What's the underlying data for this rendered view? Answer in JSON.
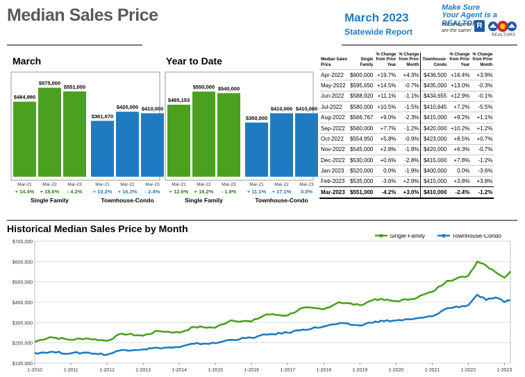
{
  "header": {
    "title": "Median Sales Price",
    "report_month": "March 2023",
    "report_sub": "Statewide Report",
    "brand_line1": "Make Sure",
    "brand_line2": "Your Agent is a REALTOR®",
    "brand_note1": "Not all agents",
    "brand_note2": "are the same!",
    "realtor_mark": "R",
    "car_word": "REALTORS"
  },
  "colors": {
    "green": "#4ba020",
    "blue": "#1f7bc1",
    "dark_green": "#2f7f14",
    "header_gray": "#58595b"
  },
  "chart_data": [
    {
      "type": "bar",
      "title": "March",
      "groups": [
        {
          "name": "Single Family",
          "categories": [
            "Mar-21",
            "Mar-22",
            "Mar-23"
          ],
          "values": [
            484990,
            575000,
            551000
          ],
          "value_labels": [
            "$484,990",
            "$575,000",
            "$551,000"
          ],
          "changes": [
            "+ 14.4%",
            "+ 18.6%",
            "- 4.2%"
          ]
        },
        {
          "name": "Townhouse-Condo",
          "categories": [
            "Mar-21",
            "Mar-22",
            "Mar-23"
          ],
          "values": [
            361070,
            420000,
            410000
          ],
          "value_labels": [
            "$361,070",
            "$420,000",
            "$410,000"
          ],
          "changes": [
            "+ 10.2%",
            "+ 16.3%",
            "- 2.4%"
          ]
        }
      ]
    },
    {
      "type": "bar",
      "title": "Year to Date",
      "groups": [
        {
          "name": "Single Family",
          "categories": [
            "Mar-21",
            "Mar-22",
            "Mar-23"
          ],
          "values": [
            465153,
            550000,
            540000
          ],
          "value_labels": [
            "$465,153",
            "$550,000",
            "$540,000"
          ],
          "changes": [
            "+ 12.6%",
            "+ 18.2%",
            "- 1.8%"
          ]
        },
        {
          "name": "Townhouse-Condo",
          "categories": [
            "Mar-21",
            "Mar-22",
            "Mar-23"
          ],
          "values": [
            350000,
            410000,
            410000
          ],
          "value_labels": [
            "$350,000",
            "$410,000",
            "$410,000"
          ],
          "changes": [
            "+ 11.1%",
            "+ 17.1%",
            "0.0%"
          ]
        }
      ]
    },
    {
      "type": "table",
      "headers": [
        [
          "Median Sales",
          "Price"
        ],
        [
          "Single",
          "Family"
        ],
        [
          "% Change",
          "from Prior",
          "Year"
        ],
        [
          "% Change",
          "from Prior",
          "Month"
        ],
        [
          "Townhouse-",
          "Condo"
        ],
        [
          "% Change",
          "from Prior",
          "Year"
        ],
        [
          "% Change",
          "from Prior",
          "Month"
        ]
      ],
      "rows": [
        [
          "Apr-2022",
          "$600,000",
          "+19.7%",
          "+4.3%",
          "$436,500",
          "+16.4%",
          "+3.9%"
        ],
        [
          "May-2022",
          "$595,650",
          "+14.5%",
          "-0.7%",
          "$435,000",
          "+13.0%",
          "-0.3%"
        ],
        [
          "Jun-2022",
          "$588,920",
          "+11.1%",
          "-1.1%",
          "$434,655",
          "+12.9%",
          "-0.1%"
        ],
        [
          "Jul-2022",
          "$580,000",
          "+10.5%",
          "-1.5%",
          "$410,645",
          "+7.2%",
          "-5.5%"
        ],
        [
          "Aug-2022",
          "$566,767",
          "+9.0%",
          "-2.3%",
          "$415,000",
          "+9.2%",
          "+1.1%"
        ],
        [
          "Sep-2022",
          "$560,000",
          "+7.7%",
          "-1.2%",
          "$420,000",
          "+10.2%",
          "+1.2%"
        ],
        [
          "Oct-2022",
          "$554,950",
          "+5.8%",
          "-0.9%",
          "$423,000",
          "+8.5%",
          "+0.7%"
        ],
        [
          "Nov-2022",
          "$545,000",
          "+2.8%",
          "-1.8%",
          "$420,000",
          "+6.3%",
          "-0.7%"
        ],
        [
          "Dec-2022",
          "$530,000",
          "+0.6%",
          "-2.8%",
          "$415,000",
          "+7.8%",
          "-1.2%"
        ],
        [
          "Jan-2023",
          "$520,000",
          "0.0%",
          "-1.9%",
          "$400,000",
          "0.0%",
          "-3.6%"
        ],
        [
          "Feb-2023",
          "$535,000",
          "-3.6%",
          "+2.9%",
          "$415,000",
          "+3.8%",
          "+3.8%"
        ],
        [
          "Mar-2023",
          "$551,000",
          "-4.2%",
          "+3.0%",
          "$410,000",
          "-2.4%",
          "-1.2%"
        ]
      ]
    },
    {
      "type": "line",
      "title": "Historical Median Sales Price by Month",
      "ylim": [
        100000,
        700000
      ],
      "y_ticks": [
        "$100,000",
        "$200,000",
        "$300,000",
        "$400,000",
        "$500,000",
        "$600,000",
        "$700,000"
      ],
      "x_ticks": [
        "1-2010",
        "1-2011",
        "1-2012",
        "1-2013",
        "1-2014",
        "1-2015",
        "1-2016",
        "1-2017",
        "1-2018",
        "1-2019",
        "1-2020",
        "1-2021",
        "1-2022",
        "1-2023"
      ],
      "x_start": "2010-01",
      "x_end": "2023-03",
      "series": [
        {
          "name": "Single Family",
          "color": "#4ba020",
          "anchors": [
            [
              "2010-01",
              205000
            ],
            [
              "2010-06",
              228000
            ],
            [
              "2011-01",
              215000
            ],
            [
              "2011-06",
              222000
            ],
            [
              "2012-01",
              210000
            ],
            [
              "2012-06",
              245000
            ],
            [
              "2013-01",
              235000
            ],
            [
              "2013-06",
              258000
            ],
            [
              "2014-01",
              250000
            ],
            [
              "2014-06",
              278000
            ],
            [
              "2015-01",
              275000
            ],
            [
              "2015-06",
              310000
            ],
            [
              "2016-01",
              305000
            ],
            [
              "2016-06",
              340000
            ],
            [
              "2017-01",
              335000
            ],
            [
              "2017-06",
              372000
            ],
            [
              "2018-01",
              365000
            ],
            [
              "2018-06",
              400000
            ],
            [
              "2019-01",
              385000
            ],
            [
              "2019-06",
              415000
            ],
            [
              "2020-01",
              405000
            ],
            [
              "2020-06",
              415000
            ],
            [
              "2021-01",
              450000
            ],
            [
              "2021-06",
              505000
            ],
            [
              "2022-01",
              530000
            ],
            [
              "2022-04",
              600000
            ],
            [
              "2022-06",
              588920
            ],
            [
              "2022-09",
              560000
            ],
            [
              "2022-12",
              530000
            ],
            [
              "2023-01",
              520000
            ],
            [
              "2023-03",
              551000
            ]
          ]
        },
        {
          "name": "Townhouse-Condo",
          "color": "#1f7bc1",
          "anchors": [
            [
              "2010-01",
              150000
            ],
            [
              "2010-06",
              155000
            ],
            [
              "2011-01",
              148000
            ],
            [
              "2011-06",
              152000
            ],
            [
              "2012-01",
              142000
            ],
            [
              "2012-06",
              165000
            ],
            [
              "2013-01",
              168000
            ],
            [
              "2013-06",
              175000
            ],
            [
              "2014-01",
              178000
            ],
            [
              "2014-06",
              195000
            ],
            [
              "2015-01",
              198000
            ],
            [
              "2015-06",
              215000
            ],
            [
              "2016-01",
              225000
            ],
            [
              "2016-06",
              240000
            ],
            [
              "2017-01",
              250000
            ],
            [
              "2017-06",
              265000
            ],
            [
              "2018-01",
              280000
            ],
            [
              "2018-06",
              295000
            ],
            [
              "2019-01",
              285000
            ],
            [
              "2019-06",
              305000
            ],
            [
              "2020-01",
              310000
            ],
            [
              "2020-06",
              315000
            ],
            [
              "2021-01",
              330000
            ],
            [
              "2021-06",
              370000
            ],
            [
              "2022-01",
              385000
            ],
            [
              "2022-04",
              436500
            ],
            [
              "2022-07",
              410645
            ],
            [
              "2022-10",
              423000
            ],
            [
              "2023-01",
              400000
            ],
            [
              "2023-03",
              410000
            ]
          ]
        }
      ]
    }
  ]
}
